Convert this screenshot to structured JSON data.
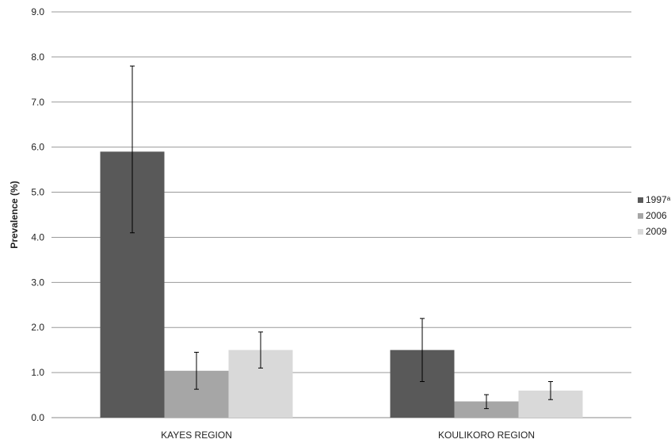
{
  "chart_data": {
    "type": "bar",
    "ylabel": "Prevalence (%)",
    "xlabel": "",
    "ylim": [
      0,
      9
    ],
    "yticks": [
      "0.0",
      "1.0",
      "2.0",
      "3.0",
      "4.0",
      "5.0",
      "6.0",
      "7.0",
      "8.0",
      "9.0"
    ],
    "grid": true,
    "legend": "right",
    "categories": [
      "KAYES REGION",
      "KOULIKORO REGION"
    ],
    "series": [
      {
        "name": "1997ᵃ",
        "color": "#595959",
        "values": [
          5.9,
          1.5
        ],
        "err_low": [
          4.1,
          0.8
        ],
        "err_high": [
          7.8,
          2.2
        ]
      },
      {
        "name": "2006",
        "color": "#a6a6a6",
        "values": [
          1.04,
          0.36
        ],
        "err_low": [
          0.63,
          0.2
        ],
        "err_high": [
          1.45,
          0.51
        ]
      },
      {
        "name": "2009",
        "color": "#d9d9d9",
        "values": [
          1.5,
          0.6
        ],
        "err_low": [
          1.1,
          0.4
        ],
        "err_high": [
          1.9,
          0.8
        ]
      }
    ]
  }
}
